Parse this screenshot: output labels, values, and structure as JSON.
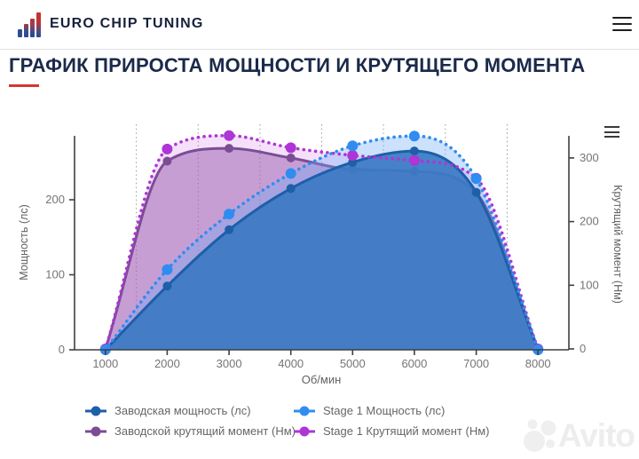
{
  "header": {
    "brand": "EURO CHIP TUNING"
  },
  "title": {
    "text": "ГРАФИК ПРИРОСТА МОЩНОСТИ И КРУТЯЩЕГО МОМЕНТА"
  },
  "chart_data": {
    "type": "line",
    "x": [
      1000,
      2000,
      3000,
      4000,
      5000,
      6000,
      7000,
      8000
    ],
    "xlabel": "Об/мин",
    "axes": {
      "left": {
        "label": "Мощность (лс)",
        "ticks": [
          0,
          100,
          200
        ],
        "max": 285
      },
      "right": {
        "label": "Крутящий момент (Нм)",
        "ticks": [
          0,
          100,
          200,
          300
        ],
        "max": 335
      }
    },
    "grid": "vertical-dotted",
    "legend_position": "bottom",
    "series": [
      {
        "name": "Заводская мощность (лс)",
        "axis": "left",
        "line": "solid",
        "color": "#1d5fa8",
        "fill": "rgba(29,95,168,0.9)",
        "values": [
          0,
          85,
          160,
          215,
          250,
          265,
          210,
          0
        ]
      },
      {
        "name": "Stage 1 Мощность (лс)",
        "axis": "left",
        "line": "dotted",
        "color": "#2f8cf0",
        "fill": "rgba(110,170,245,0.35)",
        "values": [
          0,
          107,
          181,
          235,
          272,
          285,
          228,
          0
        ]
      },
      {
        "name": "Заводской крутящий момент (Нм)",
        "axis": "right",
        "line": "solid",
        "color": "#7b4d94",
        "fill": "rgba(148,94,166,0.5)",
        "values": [
          0,
          295,
          315,
          300,
          282,
          279,
          245,
          0
        ]
      },
      {
        "name": "Stage 1 Крутящий момент (Нм)",
        "axis": "right",
        "line": "dotted",
        "color": "#ae35d6",
        "fill": "rgba(196,90,224,0.18)",
        "values": [
          0,
          314,
          335,
          316,
          304,
          296,
          268,
          0
        ]
      }
    ],
    "axis_text_color": "#757575",
    "axis_line_color": "#3f3f3f",
    "grid_color": "#9a9a9a"
  },
  "watermark": {
    "text": "Avito"
  }
}
